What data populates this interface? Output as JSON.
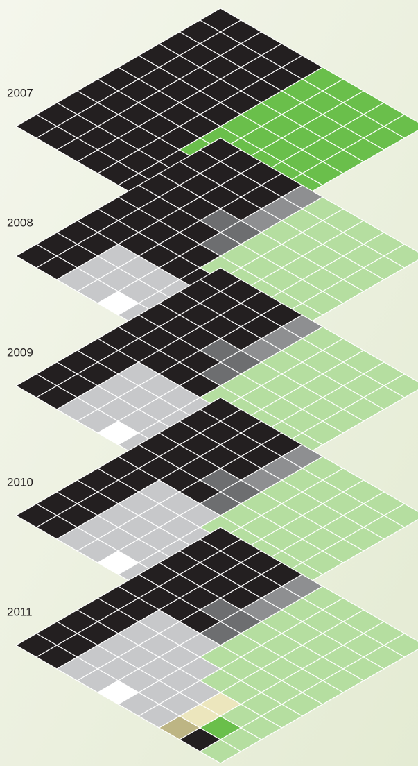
{
  "layers": [
    {
      "year": "2007"
    },
    {
      "year": "2008"
    },
    {
      "year": "2009"
    },
    {
      "year": "2010"
    },
    {
      "year": "2011"
    }
  ]
}
